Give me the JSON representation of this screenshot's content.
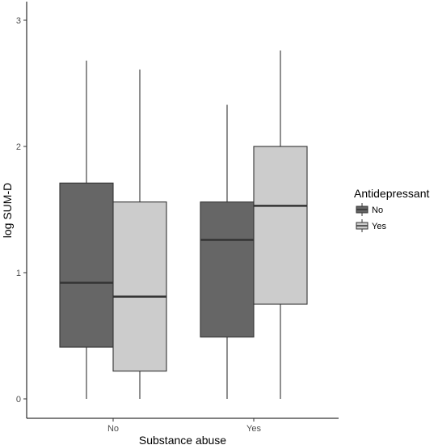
{
  "chart_data": {
    "type": "boxplot",
    "xlabel": "Substance abuse",
    "ylabel": "log SUM-D",
    "categories": [
      "No",
      "Yes"
    ],
    "ylim": [
      -0.15,
      3.15
    ],
    "yticks": [
      0,
      1,
      2,
      3
    ],
    "grid": false,
    "legend": {
      "title": "Antidepressant",
      "placement": "right",
      "entries": [
        "No",
        "Yes"
      ]
    },
    "series": [
      {
        "name": "No",
        "color": "#666666",
        "boxes": [
          {
            "category": "No",
            "min": 0.0,
            "q1": 0.41,
            "median": 0.92,
            "q3": 1.71,
            "max": 2.68
          },
          {
            "category": "Yes",
            "min": 0.0,
            "q1": 0.49,
            "median": 1.26,
            "q3": 1.56,
            "max": 2.33
          }
        ]
      },
      {
        "name": "Yes",
        "color": "#cccccc",
        "boxes": [
          {
            "category": "No",
            "min": 0.0,
            "q1": 0.22,
            "median": 0.81,
            "q3": 1.56,
            "max": 2.61
          },
          {
            "category": "Yes",
            "min": 0.0,
            "q1": 0.75,
            "median": 1.53,
            "q3": 2.0,
            "max": 2.76
          }
        ]
      }
    ]
  }
}
